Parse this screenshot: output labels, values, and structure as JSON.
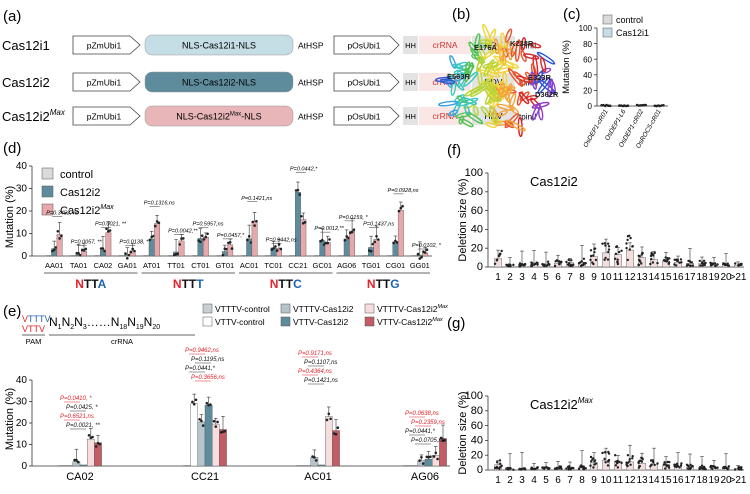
{
  "colors": {
    "control": "#d8dadb",
    "cas12i1": "#c5dde5",
    "cas12i2": "#5e8c9c",
    "cas12i2max": "#e7a8ab",
    "cas12i2max_box": "#e8b6b8",
    "vttv_ctrl": "#ecf0f1",
    "vtttv_ctrl": "#b4c4cb",
    "vtttv_cas12i2": "#f6dede",
    "vttv_cas12i2max": "#c25d66",
    "red": "#e4222a",
    "blue": "#1e63b4"
  },
  "panel_a": {
    "letter": "(a)",
    "constructs": [
      {
        "label": "Cas12i1",
        "promoter": "pZmUbi1",
        "cassette": "NLS-Cas12i1-NLS",
        "terminator": "AtHSP",
        "promoter2": "pOsUbi1",
        "hh": "HH",
        "crrna": "crRNA",
        "hdv": "HDV",
        "tail": "tpinII"
      },
      {
        "label": "Cas12i2",
        "promoter": "pZmUbi1",
        "cassette": "NLS-Cas12i2-NLS",
        "terminator": "AtHSP",
        "promoter2": "pOsUbi1",
        "hh": "HH",
        "crrna": "crRNA",
        "hdv": "HDV",
        "tail": "tpinII"
      },
      {
        "label": "Cas12i2",
        "label_sup": "Max",
        "promoter": "pZmUbi1",
        "cassette": "NLS-Cas12i2",
        "cassette_sup": "Max",
        "cassette_end": "-NLS",
        "terminator": "AtHSP",
        "promoter2": "pOsUbi1",
        "hh": "HH",
        "crrna": "crRNA",
        "hdv": "HDV",
        "tail": "tpinII"
      }
    ]
  },
  "panel_b": {
    "letter": "(b)",
    "labels": [
      "E176A",
      "K238R",
      "E563R",
      "E323R",
      "D362R"
    ]
  },
  "chart_data": [
    {
      "id": "c",
      "type": "bar",
      "letter": "(c)",
      "ylabel": "Mutation (%)",
      "ylim": [
        0,
        100
      ],
      "yticks": [
        "0",
        "20",
        "40",
        "60",
        "80",
        "100"
      ],
      "legend": [
        "control",
        "Cas12i1"
      ],
      "categories": [
        "OsDEP1-cR01",
        "OsDEP1-L6",
        "OsDEP1-cR02",
        "OsROC5-cR01"
      ],
      "series": [
        {
          "name": "control",
          "values": [
            0.7,
            0.1,
            0.3,
            0.1
          ]
        },
        {
          "name": "Cas12i1",
          "values": [
            0.9,
            0.1,
            0.6,
            0.2
          ]
        }
      ]
    },
    {
      "id": "d",
      "type": "bar",
      "letter": "(d)",
      "ylabel": "Mutation (%)",
      "ylim": [
        0,
        40
      ],
      "yticks": [
        "0",
        "10",
        "20",
        "30",
        "40"
      ],
      "legend": [
        {
          "name": "control"
        },
        {
          "name": "Cas12i2"
        },
        {
          "name": "Cas12i2",
          "sup": "Max"
        }
      ],
      "categories": [
        "AA01",
        "TA01",
        "CA02",
        "GA01",
        "AT01",
        "TT01",
        "CT01",
        "GT01",
        "AC01",
        "TC01",
        "CC21",
        "GC01",
        "AG06",
        "TG01",
        "CG01",
        "GG01"
      ],
      "series": [
        {
          "name": "control",
          "values": [
            0.2,
            0.2,
            0.2,
            0.2,
            0.2,
            0.2,
            0.2,
            0.2,
            0.2,
            0.2,
            0.2,
            0.2,
            0.2,
            0.2,
            0.2,
            0.2
          ]
        },
        {
          "name": "Cas12i2",
          "values": [
            3.3,
            0.5,
            2.5,
            0.6,
            7.6,
            1.8,
            7.8,
            2.0,
            7.7,
            3.6,
            28.3,
            6.8,
            7.6,
            3.8,
            6.3,
            0.4
          ]
        },
        {
          "name": "Cas12i2Max",
          "values": [
            9.6,
            2.2,
            10.4,
            2.3,
            14.4,
            6.7,
            8.4,
            5.0,
            15.2,
            3.4,
            16.2,
            6.0,
            11.1,
            7.4,
            20.4,
            1.3
          ]
        }
      ],
      "group_labels": [
        {
          "prefix": "N",
          "mid": "TT",
          "last": "A"
        },
        {
          "prefix": "N",
          "mid": "TT",
          "last": "T"
        },
        {
          "prefix": "N",
          "mid": "TT",
          "last": "C"
        },
        {
          "prefix": "N",
          "mid": "TT",
          "last": "G"
        }
      ],
      "annotations": [
        {
          "cat": 0,
          "text": "P=0.3452, ns",
          "y": 18.5
        },
        {
          "cat": 1,
          "text": "P=0.0057, **",
          "y": 5.5
        },
        {
          "cat": 2,
          "text": "P=0.0021, **",
          "y": 13.5
        },
        {
          "cat": 3,
          "text": "P=0.0138, *",
          "y": 5.5
        },
        {
          "cat": 4,
          "text": "P=0.1316,ns",
          "y": 23.0
        },
        {
          "cat": 5,
          "text": "P=0.0042,**",
          "y": 10.5
        },
        {
          "cat": 6,
          "text": "P=0.5957,ns",
          "y": 13.5
        },
        {
          "cat": 7,
          "text": "P=0.0457,*",
          "y": 8.5
        },
        {
          "cat": 8,
          "text": "P=0.1421,ns",
          "y": 25.0
        },
        {
          "cat": 9,
          "text": "P=0.9442,ns",
          "y": 6.5
        },
        {
          "cat": 10,
          "text": "P=0.0442,*",
          "y": 38.0
        },
        {
          "cat": 11,
          "text": "P=0.0012,**",
          "y": 11.5
        },
        {
          "cat": 12,
          "text": "P=0.0159, *",
          "y": 16.5
        },
        {
          "cat": 13,
          "text": "P=0.1437,ns",
          "y": 13.5
        },
        {
          "cat": 14,
          "text": "P=0.0928,ns",
          "y": 28.5
        },
        {
          "cat": 15,
          "text": "P=0.0102, *",
          "y": 4.0
        }
      ]
    },
    {
      "id": "e",
      "type": "bar",
      "letter": "(e)",
      "ylabel": "Mutation (%)",
      "ylim": [
        0,
        40
      ],
      "yticks": [
        "0",
        "10",
        "20",
        "30",
        "40"
      ],
      "pam_label": "PAM",
      "crrna_label": "crRNA",
      "legend": [
        {
          "name": "VTTTV-control"
        },
        {
          "name": "VTTV-control"
        },
        {
          "name": "VTTTV-Cas12i2"
        },
        {
          "name": "VTTV-Cas12i2"
        },
        {
          "name": "VTTTV-Cas12i2",
          "sup": "Max"
        },
        {
          "name": "VTTV-Cas12i2",
          "sup": "Max"
        }
      ],
      "categories": [
        "CA02",
        "CC21",
        "AC01",
        "AG06"
      ],
      "series": [
        {
          "name": "VTTTV-control",
          "values": [
            0.2,
            0.2,
            0.2,
            0.2
          ]
        },
        {
          "name": "VTTV-control",
          "values": [
            0.2,
            29.0,
            0.2,
            0.2
          ]
        },
        {
          "name": "VTTTV-Cas12i2",
          "values": [
            2.0,
            20.5,
            4.0,
            2.5
          ]
        },
        {
          "name": "VTTV-Cas12i2",
          "values": [
            0.5,
            28.3,
            0.5,
            3.2
          ]
        },
        {
          "name": "VTTTV-Cas12i2Max",
          "values": [
            12.5,
            19.5,
            23.0,
            5.0
          ]
        },
        {
          "name": "VTTV-Cas12i2Max",
          "values": [
            10.8,
            17.0,
            16.5,
            12.8
          ]
        }
      ],
      "annotations": [
        {
          "text": "P=0.0410, *",
          "color": "red"
        },
        {
          "text": "P=0.0425, *",
          "color": "black"
        },
        {
          "text": "P=0.6521,ns",
          "color": "red"
        },
        {
          "text": "P=0.0021, **",
          "color": "black"
        },
        {
          "text": "P=0.9462,ns",
          "color": "red"
        },
        {
          "text": "P=0.1195,ns",
          "color": "black"
        },
        {
          "text": "P=0.0441,*",
          "color": "black"
        },
        {
          "text": "P=0.3656,ns",
          "color": "red"
        },
        {
          "text": "P=0.9171,ns",
          "color": "red"
        },
        {
          "text": "P=0.1107,ns",
          "color": "black"
        },
        {
          "text": "P=0.4364,ns",
          "color": "red"
        },
        {
          "text": "P=0.1421,ns",
          "color": "black"
        },
        {
          "text": "P=0.0638,ns",
          "color": "red"
        },
        {
          "text": "P=0.2359,ns",
          "color": "red"
        },
        {
          "text": "P=0.0441,*",
          "color": "black"
        },
        {
          "text": "P=0.0705,ns",
          "color": "black"
        }
      ]
    },
    {
      "id": "f",
      "type": "bar",
      "letter": "(f)",
      "title": "Cas12i2",
      "ylabel": "Deletion size (%)",
      "ylim": [
        0,
        100
      ],
      "yticks": [
        "0",
        "20",
        "40",
        "60",
        "80",
        "100"
      ],
      "categories": [
        "1",
        "2",
        "3",
        "4",
        "5",
        "6",
        "7",
        "8",
        "9",
        "10",
        "11",
        "12",
        "13",
        "14",
        "15",
        "16",
        "17",
        "18",
        "19",
        "20",
        ">21"
      ],
      "values": [
        9,
        1.5,
        2,
        2.5,
        3,
        4,
        4.5,
        5,
        11,
        15,
        13,
        18,
        10,
        8,
        6,
        5,
        4,
        3.5,
        3,
        2.5,
        2
      ]
    },
    {
      "id": "g",
      "type": "bar",
      "letter": "(g)",
      "title": "Cas12i2",
      "title_sup": "Max",
      "ylabel": "Deletion size (%)",
      "ylim": [
        0,
        100
      ],
      "yticks": [
        "0",
        "20",
        "40",
        "60",
        "80",
        "100"
      ],
      "categories": [
        "1",
        "2",
        "3",
        "4",
        "5",
        "6",
        "7",
        "8",
        "9",
        "10",
        "11",
        "12",
        "13",
        "14",
        "15",
        "16",
        "17",
        "18",
        "19",
        "20",
        ">21"
      ],
      "values": [
        7,
        1.5,
        1.5,
        2,
        2,
        2.5,
        3,
        3.5,
        10,
        13,
        12,
        11,
        9,
        7,
        6,
        5,
        4,
        3.5,
        3,
        3,
        2
      ]
    }
  ]
}
